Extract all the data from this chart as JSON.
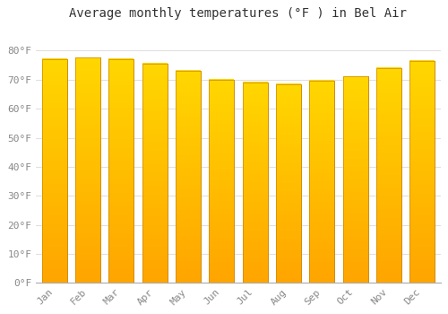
{
  "months": [
    "Jan",
    "Feb",
    "Mar",
    "Apr",
    "May",
    "Jun",
    "Jul",
    "Aug",
    "Sep",
    "Oct",
    "Nov",
    "Dec"
  ],
  "values": [
    77.0,
    77.5,
    77.0,
    75.5,
    73.0,
    70.0,
    69.0,
    68.5,
    69.5,
    71.0,
    74.0,
    76.5
  ],
  "bar_color_top": "#FFD700",
  "bar_color_bottom": "#FFA500",
  "bar_edge_color": "#CC8800",
  "title": "Average monthly temperatures (°F ) in Bel Air",
  "ylabel_ticks": [
    "0°F",
    "10°F",
    "20°F",
    "30°F",
    "40°F",
    "50°F",
    "60°F",
    "70°F",
    "80°F"
  ],
  "ytick_values": [
    0,
    10,
    20,
    30,
    40,
    50,
    60,
    70,
    80
  ],
  "ylim": [
    0,
    88
  ],
  "background_color": "#ffffff",
  "grid_color": "#e0e0e0",
  "title_fontsize": 10,
  "tick_fontsize": 8,
  "bar_width": 0.75
}
